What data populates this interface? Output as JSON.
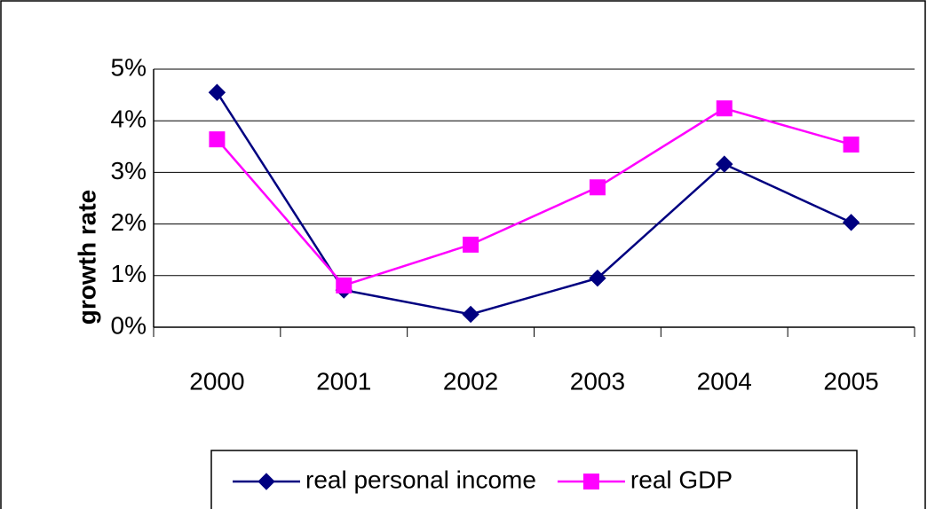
{
  "chart_data": {
    "type": "line",
    "y_label": "growth rate",
    "categories": [
      "2000",
      "2001",
      "2002",
      "2003",
      "2004",
      "2005"
    ],
    "series": [
      {
        "name": "real personal income",
        "color": "#000080",
        "marker": "diamond",
        "values": [
          4.55,
          0.72,
          0.25,
          0.95,
          3.16,
          2.03
        ]
      },
      {
        "name": "real GDP",
        "color": "#ff00ff",
        "marker": "square",
        "values": [
          3.64,
          0.81,
          1.6,
          2.71,
          4.24,
          3.54
        ]
      }
    ],
    "ylim": [
      0,
      5
    ],
    "yticks": [
      {
        "value": 0,
        "label": "0%"
      },
      {
        "value": 1,
        "label": "1%"
      },
      {
        "value": 2,
        "label": "2%"
      },
      {
        "value": 3,
        "label": "3%"
      },
      {
        "value": 4,
        "label": "4%"
      },
      {
        "value": 5,
        "label": "5%"
      }
    ],
    "grid": true,
    "legend": "bottom"
  }
}
